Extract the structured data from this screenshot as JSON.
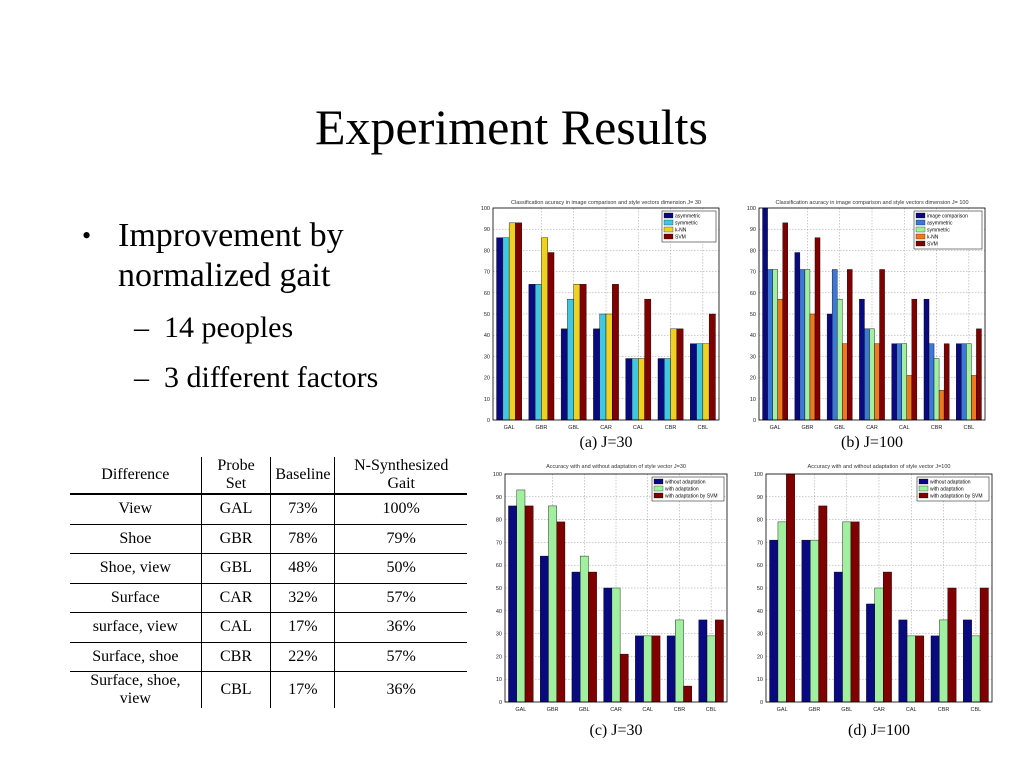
{
  "slide": {
    "title": "Experiment Results",
    "bullets": [
      {
        "text": "Improvement by normalized gait",
        "sub": [
          "14 peoples",
          "3 different factors"
        ]
      }
    ]
  },
  "table": {
    "headers": [
      "Difference",
      "Probe Set",
      "Baseline",
      "N-Synthesized Gait"
    ],
    "rows": [
      [
        "View",
        "GAL",
        "73%",
        "100%"
      ],
      [
        "Shoe",
        "GBR",
        "78%",
        "79%"
      ],
      [
        "Shoe, view",
        "GBL",
        "48%",
        "50%"
      ],
      [
        "Surface",
        "CAR",
        "32%",
        "57%"
      ],
      [
        "surface, view",
        "CAL",
        "17%",
        "36%"
      ],
      [
        "Surface, shoe",
        "CBR",
        "22%",
        "57%"
      ],
      [
        "Surface, shoe, view",
        "CBL",
        "17%",
        "36%"
      ]
    ]
  },
  "chart_data": [
    {
      "type": "bar",
      "title": "Classification acuracy in image comparison and style vectors dimension J= 30",
      "caption": "(a) J=30",
      "categories": [
        "GAL",
        "GBR",
        "GBL",
        "CAR",
        "CAL",
        "CBR",
        "CBL"
      ],
      "ylim": [
        0,
        100
      ],
      "yticks": [
        0,
        10,
        20,
        30,
        40,
        50,
        60,
        70,
        80,
        90,
        100
      ],
      "grid": true,
      "legend_position": "top-right",
      "series": [
        {
          "name": "asymmetric",
          "color": "#0a0a80",
          "values": [
            86,
            64,
            43,
            43,
            29,
            29,
            36
          ]
        },
        {
          "name": "symmetric",
          "color": "#40c8e0",
          "values": [
            86,
            64,
            57,
            50,
            29,
            29,
            36
          ]
        },
        {
          "name": "k-NN",
          "color": "#f0d020",
          "values": [
            93,
            86,
            64,
            50,
            29,
            43,
            36
          ]
        },
        {
          "name": "SVM",
          "color": "#800000",
          "values": [
            93,
            79,
            64,
            64,
            57,
            43,
            50
          ]
        }
      ]
    },
    {
      "type": "bar",
      "title": "Classification acuracy in image comparison and style vectors dimension J= 100",
      "caption": "(b) J=100",
      "categories": [
        "GAL",
        "GBR",
        "GBL",
        "CAR",
        "CAL",
        "CBR",
        "CBL"
      ],
      "ylim": [
        0,
        100
      ],
      "yticks": [
        0,
        10,
        20,
        30,
        40,
        50,
        60,
        70,
        80,
        90,
        100
      ],
      "grid": true,
      "legend_position": "top-right",
      "series": [
        {
          "name": "image comparison",
          "color": "#0a0a80",
          "values": [
            100,
            79,
            50,
            57,
            36,
            57,
            36
          ]
        },
        {
          "name": "asymmetric",
          "color": "#3c78d8",
          "values": [
            71,
            71,
            71,
            43,
            36,
            36,
            36
          ]
        },
        {
          "name": "symmetric",
          "color": "#a0f0a0",
          "values": [
            71,
            71,
            57,
            43,
            36,
            29,
            36
          ]
        },
        {
          "name": "k-NN",
          "color": "#f07820",
          "values": [
            57,
            50,
            36,
            36,
            21,
            14,
            21
          ]
        },
        {
          "name": "SVM",
          "color": "#800000",
          "values": [
            93,
            86,
            71,
            71,
            57,
            36,
            43
          ]
        }
      ]
    },
    {
      "type": "bar",
      "title": "Accuracy with and without adaptation of style vector J=30",
      "caption": "(c) J=30",
      "categories": [
        "GAL",
        "GBR",
        "GBL",
        "CAR",
        "CAL",
        "CBR",
        "CBL"
      ],
      "ylim": [
        0,
        100
      ],
      "yticks": [
        0,
        10,
        20,
        30,
        40,
        50,
        60,
        70,
        80,
        90,
        100
      ],
      "grid": true,
      "legend_position": "top-right",
      "series": [
        {
          "name": "without adaptation",
          "color": "#0a0a80",
          "values": [
            86,
            64,
            57,
            50,
            29,
            29,
            36
          ]
        },
        {
          "name": "with adaptation",
          "color": "#a0f0a0",
          "values": [
            93,
            86,
            64,
            50,
            29,
            36,
            29
          ]
        },
        {
          "name": "with adaptation by SVM",
          "color": "#800000",
          "values": [
            86,
            79,
            57,
            21,
            29,
            7,
            36
          ]
        }
      ]
    },
    {
      "type": "bar",
      "title": "Accuracy with and without adaptation of style vector J=100",
      "caption": "(d) J=100",
      "categories": [
        "GAL",
        "GBR",
        "GBL",
        "CAR",
        "CAL",
        "CBR",
        "CBL"
      ],
      "ylim": [
        0,
        100
      ],
      "yticks": [
        0,
        10,
        20,
        30,
        40,
        50,
        60,
        70,
        80,
        90,
        100
      ],
      "grid": true,
      "legend_position": "top-right",
      "series": [
        {
          "name": "without adaptation",
          "color": "#0a0a80",
          "values": [
            71,
            71,
            57,
            43,
            36,
            29,
            36
          ]
        },
        {
          "name": "with adaptation",
          "color": "#a0f0a0",
          "values": [
            79,
            71,
            79,
            50,
            29,
            36,
            29
          ]
        },
        {
          "name": "with adaptation by SVM",
          "color": "#800000",
          "values": [
            100,
            86,
            79,
            57,
            29,
            50,
            50
          ]
        }
      ]
    }
  ]
}
